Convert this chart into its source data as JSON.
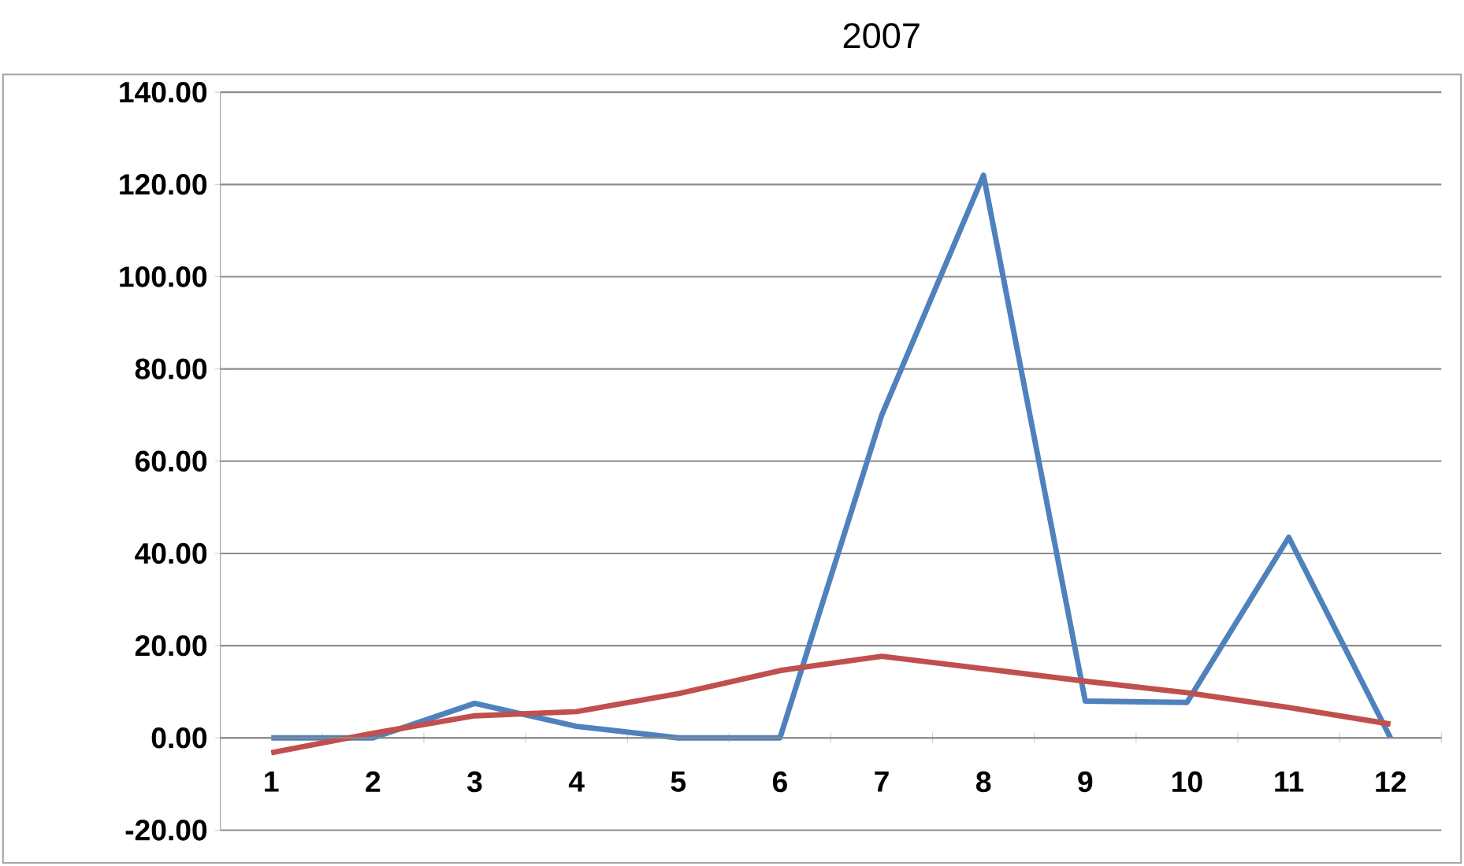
{
  "chart_data": {
    "type": "line",
    "title": "2007",
    "categories": [
      "1",
      "2",
      "3",
      "4",
      "5",
      "6",
      "7",
      "8",
      "9",
      "10",
      "11",
      "12"
    ],
    "series": [
      {
        "color": "#4f81bd",
        "values": [
          0,
          0,
          7.5,
          2.5,
          0,
          0,
          70,
          122,
          8,
          7.7,
          43.5,
          0
        ]
      },
      {
        "color": "#c0504d",
        "values": [
          -3.2,
          1,
          4.8,
          5.7,
          9.6,
          14.6,
          17.7,
          15,
          12.3,
          9.8,
          6.6,
          3
        ]
      }
    ],
    "ylim": [
      -20,
      140
    ],
    "yticks": [
      {
        "value": -20,
        "label": "-20.00"
      },
      {
        "value": 0,
        "label": "0.00"
      },
      {
        "value": 20,
        "label": "20.00"
      },
      {
        "value": 40,
        "label": "40.00"
      },
      {
        "value": 60,
        "label": "60.00"
      },
      {
        "value": 80,
        "label": "80.00"
      },
      {
        "value": 100,
        "label": "100.00"
      },
      {
        "value": 120,
        "label": "120.00"
      },
      {
        "value": 140,
        "label": "140.00"
      }
    ],
    "grid": "y",
    "marker": "none",
    "line_style": "solid"
  }
}
